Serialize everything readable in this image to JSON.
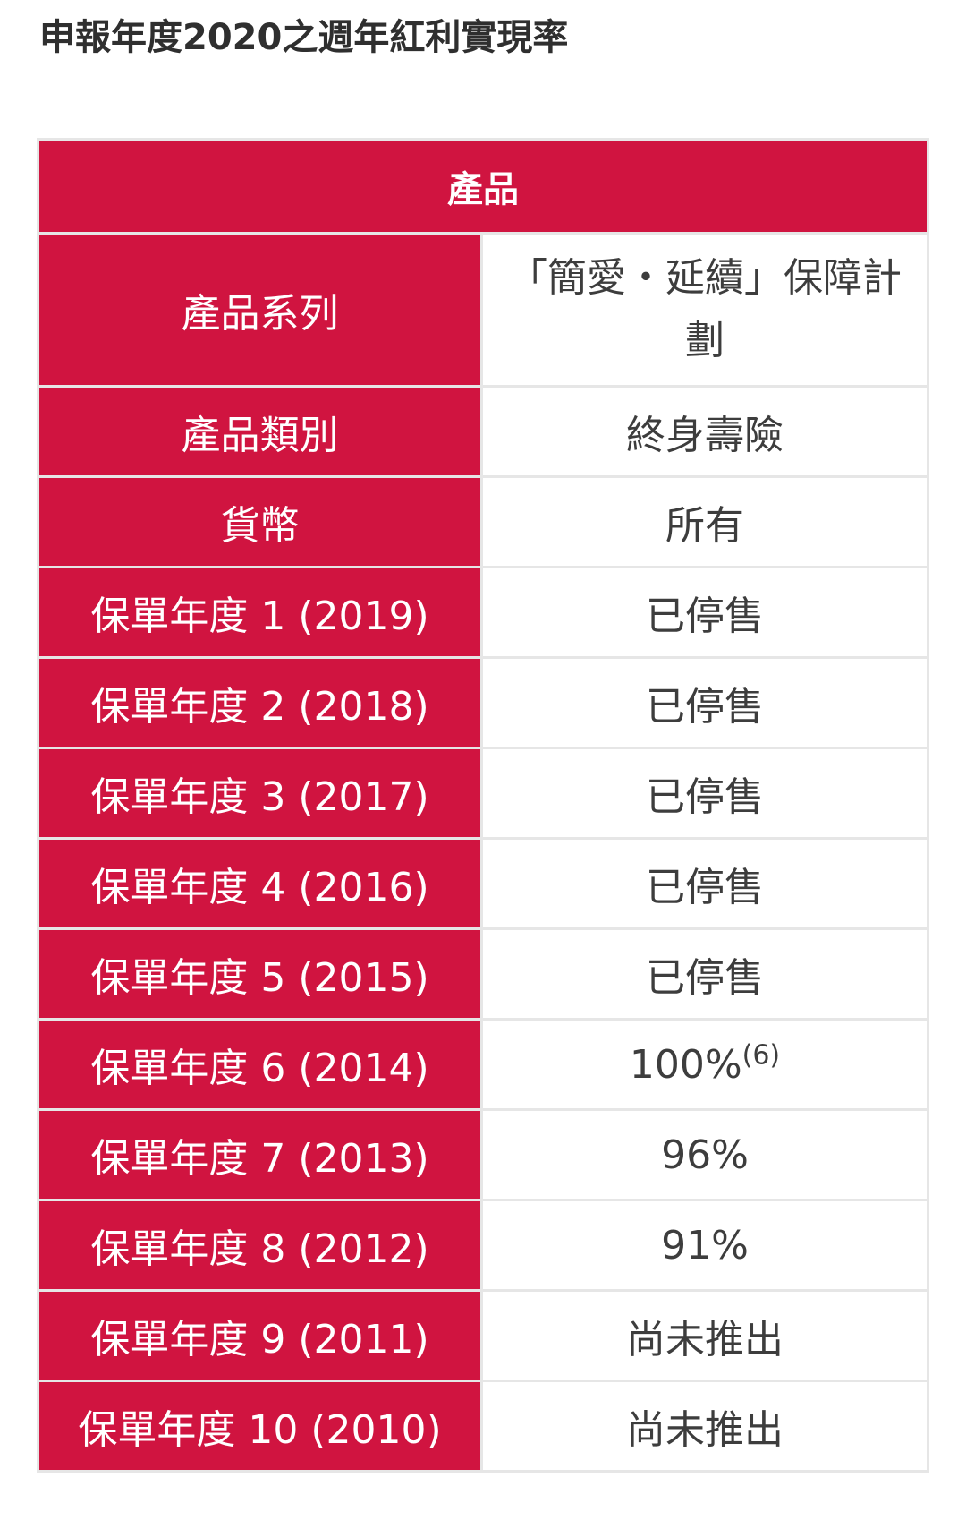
{
  "page": {
    "title": "申報年度2020之週年紅利實現率"
  },
  "table": {
    "header": "產品",
    "rows": [
      {
        "label": "產品系列",
        "value": "「簡愛・延續」保障計劃"
      },
      {
        "label": "產品類別",
        "value": "終身壽險"
      },
      {
        "label": "貨幣",
        "value": "所有"
      },
      {
        "label": "保單年度 1 (2019)",
        "value": "已停售"
      },
      {
        "label": "保單年度 2 (2018)",
        "value": "已停售"
      },
      {
        "label": "保單年度 3 (2017)",
        "value": "已停售"
      },
      {
        "label": "保單年度 4 (2016)",
        "value": "已停售"
      },
      {
        "label": "保單年度 5 (2015)",
        "value": "已停售"
      },
      {
        "label": "保單年度 6 (2014)",
        "value": "100%",
        "note": "(6)"
      },
      {
        "label": "保單年度 7 (2013)",
        "value": "96%"
      },
      {
        "label": "保單年度 8 (2012)",
        "value": "91%"
      },
      {
        "label": "保單年度 9 (2011)",
        "value": "尚未推出"
      },
      {
        "label": "保單年度 10 (2010)",
        "value": "尚未推出"
      }
    ]
  },
  "colors": {
    "accent": "#d01440",
    "border": "#e6e6e6",
    "text": "#3d3d3d"
  }
}
